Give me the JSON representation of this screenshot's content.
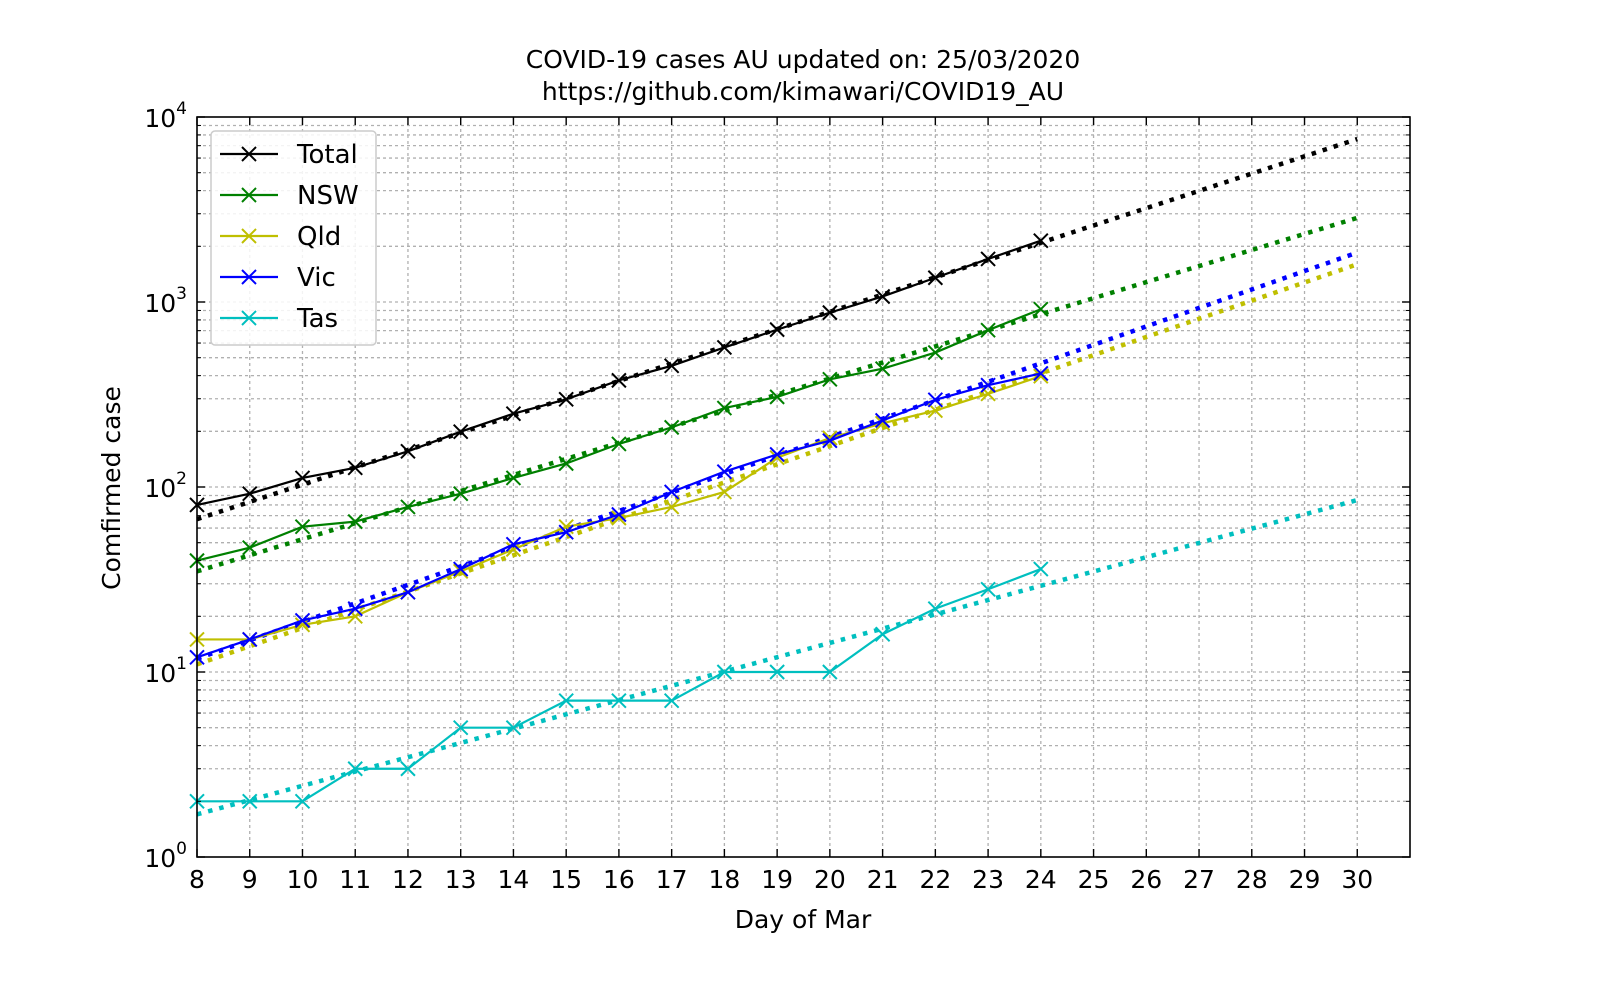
{
  "chart_data": {
    "type": "line",
    "title": "COVID-19 cases AU updated on: 25/03/2020",
    "subtitle": "https://github.com/kimawari/COVID19_AU",
    "xlabel": "Day of Mar",
    "ylabel": "Comfirmed case",
    "xlim": [
      8,
      31
    ],
    "ylim": [
      1,
      10000
    ],
    "yscale": "log",
    "grid": "on (major and minor, dotted)",
    "legend": "top-left",
    "x_ticks": [
      8,
      9,
      10,
      11,
      12,
      13,
      14,
      15,
      16,
      17,
      18,
      19,
      20,
      21,
      22,
      23,
      24,
      25,
      26,
      27,
      28,
      29,
      30
    ],
    "y_ticks": [
      {
        "value": 1,
        "base": "10",
        "exp": "0"
      },
      {
        "value": 10,
        "base": "10",
        "exp": "1"
      },
      {
        "value": 100,
        "base": "10",
        "exp": "2"
      },
      {
        "value": 1000,
        "base": "10",
        "exp": "3"
      },
      {
        "value": 10000,
        "base": "10",
        "exp": "4"
      }
    ],
    "series": [
      {
        "name": "Total",
        "color": "#000000",
        "x": [
          8,
          9,
          10,
          11,
          12,
          13,
          14,
          15,
          16,
          17,
          18,
          19,
          20,
          21,
          22,
          23,
          24
        ],
        "values": [
          80,
          92,
          112,
          127,
          156,
          199,
          249,
          298,
          377,
          452,
          568,
          709,
          876,
          1071,
          1352,
          1709,
          2145
        ],
        "trend": {
          "x": [
            8,
            30
          ],
          "values": [
            67,
            7600
          ]
        }
      },
      {
        "name": "NSW",
        "color": "#008000",
        "x": [
          8,
          9,
          10,
          11,
          12,
          13,
          14,
          15,
          16,
          17,
          18,
          19,
          20,
          21,
          22,
          23,
          24
        ],
        "values": [
          40,
          47,
          61,
          65,
          78,
          92,
          112,
          134,
          171,
          210,
          267,
          307,
          382,
          436,
          533,
          704,
          914
        ],
        "trend": {
          "x": [
            8,
            30
          ],
          "values": [
            35,
            2850
          ]
        }
      },
      {
        "name": "Qld",
        "color": "#bfbf00",
        "x": [
          8,
          9,
          10,
          11,
          12,
          13,
          14,
          15,
          16,
          17,
          18,
          19,
          20,
          21,
          22,
          23,
          24
        ],
        "values": [
          15,
          15,
          18,
          20,
          27,
          35,
          46,
          61,
          68,
          78,
          94,
          144,
          184,
          221,
          259,
          319,
          397
        ],
        "trend": {
          "x": [
            8,
            30
          ],
          "values": [
            11,
            1600
          ]
        }
      },
      {
        "name": "Vic",
        "color": "#0000ff",
        "x": [
          8,
          9,
          10,
          11,
          12,
          13,
          14,
          15,
          16,
          17,
          18,
          19,
          20,
          21,
          22,
          23,
          24
        ],
        "values": [
          12,
          15,
          19,
          22,
          27,
          36,
          49,
          57,
          71,
          94,
          121,
          150,
          178,
          229,
          296,
          355,
          411
        ],
        "trend": {
          "x": [
            8,
            30
          ],
          "values": [
            11.8,
            1850
          ]
        }
      },
      {
        "name": "Tas",
        "color": "#00bfbf",
        "x": [
          8,
          9,
          10,
          11,
          12,
          13,
          14,
          15,
          16,
          17,
          18,
          19,
          20,
          21,
          22,
          23,
          24
        ],
        "values": [
          2,
          2,
          2,
          3,
          3,
          5,
          5,
          7,
          7,
          7,
          10,
          10,
          10,
          16,
          22,
          28,
          36
        ],
        "trend": {
          "x": [
            8,
            30
          ],
          "values": [
            1.7,
            85
          ]
        }
      }
    ]
  }
}
